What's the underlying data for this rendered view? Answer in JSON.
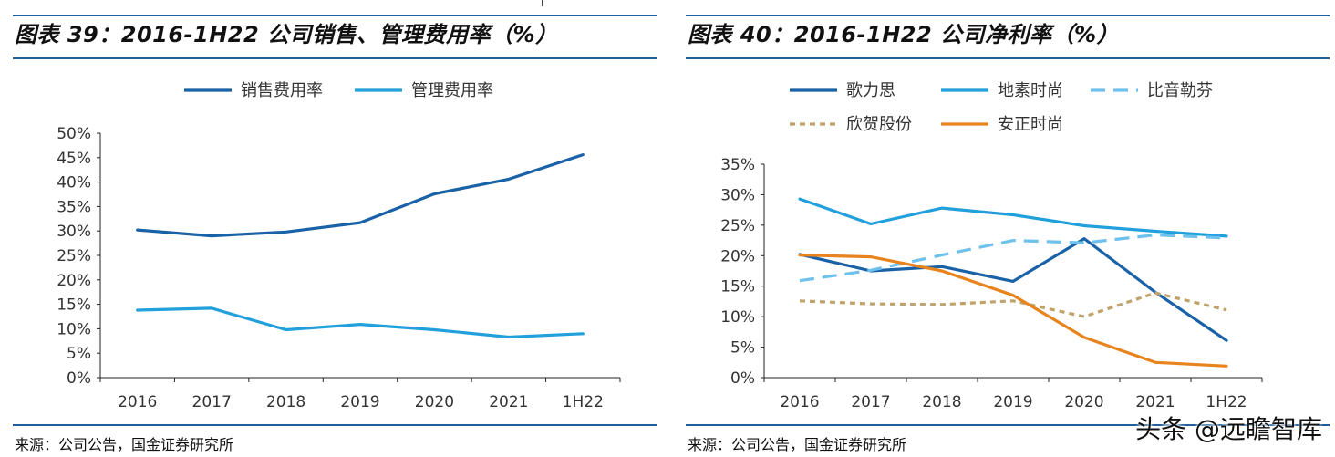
{
  "charts": [
    {
      "title": "图表 39：2016-1H22 公司销售、管理费用率（%）",
      "source": "来源：公司公告，国金证券研究所",
      "chart_data": {
        "type": "line",
        "categories": [
          "2016",
          "2017",
          "2018",
          "2019",
          "2020",
          "2021",
          "1H22"
        ],
        "ylim": [
          0,
          50
        ],
        "yticks": [
          "0%",
          "5%",
          "10%",
          "15%",
          "20%",
          "25%",
          "30%",
          "35%",
          "40%",
          "45%",
          "50%"
        ],
        "series": [
          {
            "name": "销售费用率",
            "color": "#1a62a8",
            "dash": "",
            "values": [
              30.2,
              29.0,
              29.8,
              31.7,
              37.6,
              40.6,
              45.6
            ]
          },
          {
            "name": "管理费用率",
            "color": "#22a0dc",
            "dash": "",
            "values": [
              13.8,
              14.2,
              9.8,
              10.9,
              9.8,
              8.3,
              9.0
            ]
          }
        ],
        "legend": "top"
      }
    },
    {
      "title": "图表 40：2016-1H22 公司净利率（%）",
      "source": "来源：公司公告，国金证券研究所",
      "chart_data": {
        "type": "line",
        "categories": [
          "2016",
          "2017",
          "2018",
          "2019",
          "2020",
          "2021",
          "1H22"
        ],
        "ylim": [
          0,
          35
        ],
        "yticks": [
          "0%",
          "5%",
          "10%",
          "15%",
          "20%",
          "25%",
          "30%",
          "35%"
        ],
        "series": [
          {
            "name": "歌力思",
            "color": "#1a62a8",
            "dash": "",
            "values": [
              20.2,
              17.5,
              18.2,
              15.8,
              22.8,
              14.0,
              6.1
            ]
          },
          {
            "name": "地素时尚",
            "color": "#22a0dc",
            "dash": "",
            "values": [
              29.3,
              25.2,
              27.8,
              26.7,
              24.9,
              24.0,
              23.2
            ]
          },
          {
            "name": "比音勒芬",
            "color": "#6ec1ec",
            "dash": "16,9",
            "values": [
              15.9,
              17.6,
              20.1,
              22.5,
              22.1,
              23.4,
              22.9
            ]
          },
          {
            "name": "欣贺股份",
            "color": "#bfa36a",
            "dash": "6,5",
            "values": [
              12.6,
              12.1,
              12.0,
              12.6,
              10.0,
              13.9,
              11.1
            ]
          },
          {
            "name": "安正时尚",
            "color": "#e8841e",
            "dash": "",
            "values": [
              20.1,
              19.8,
              17.5,
              13.5,
              6.6,
              2.5,
              1.9
            ]
          }
        ],
        "legend": "top"
      }
    }
  ],
  "watermark": "头条 @远瞻智库"
}
